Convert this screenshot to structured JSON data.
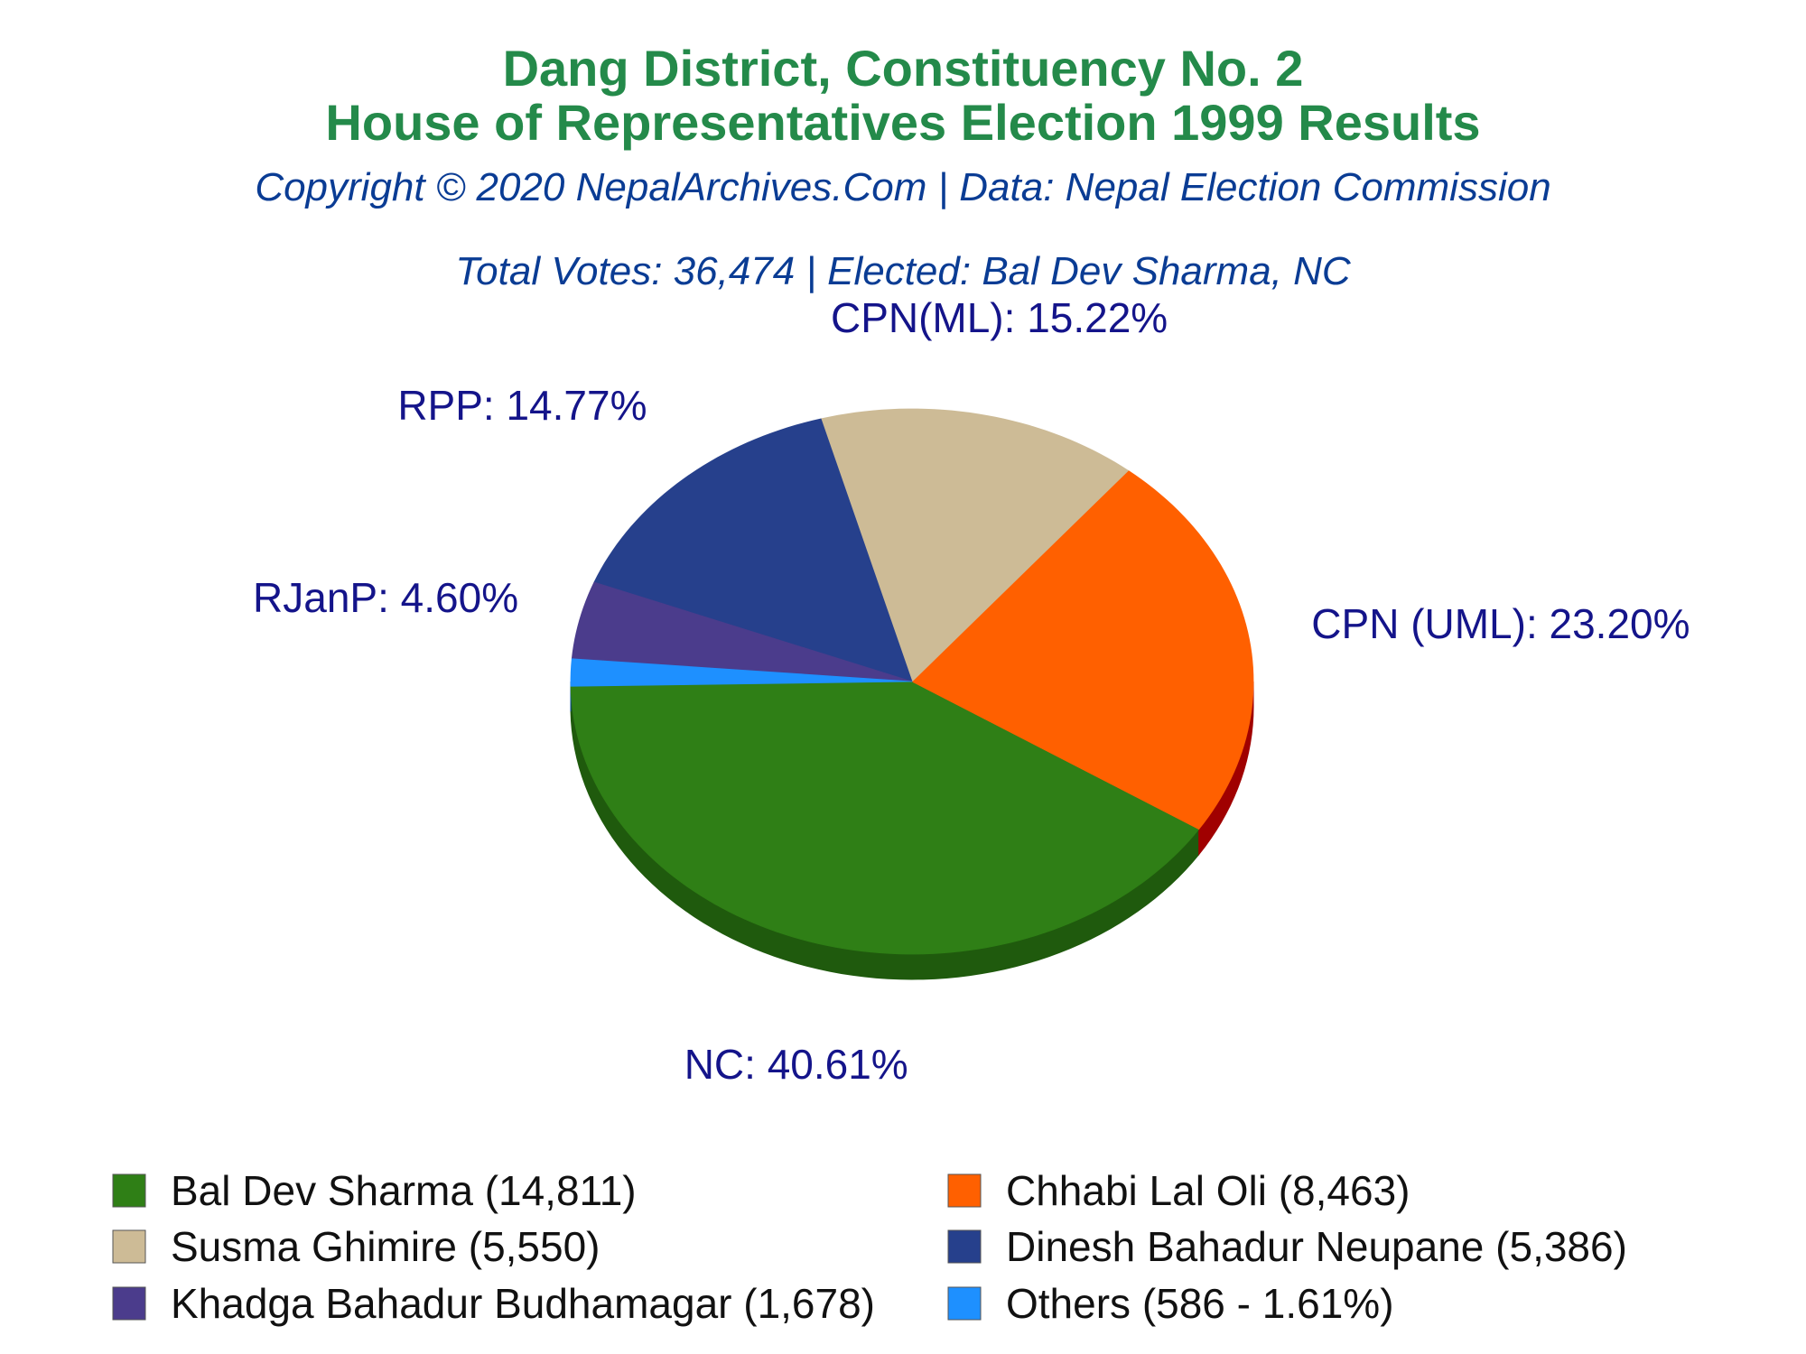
{
  "header": {
    "title_line1": "Dang District, Constituency No. 2",
    "title_line2": "House of Representatives Election 1999 Results",
    "copyright": "Copyright © 2020 NepalArchives.Com | Data: Nepal Election Commission",
    "summary": "Total Votes: 36,474 | Elected: Bal Dev Sharma, NC"
  },
  "chart_data": {
    "type": "pie",
    "three_d": true,
    "total_votes": 36474,
    "elected": "Bal Dev Sharma, NC",
    "slices": [
      {
        "party": "NC",
        "candidate": "Bal Dev Sharma",
        "votes": 14811,
        "percent": 40.61,
        "label": "NC: 40.61%",
        "color": "#2f7f16",
        "side_color": "#1f5a0d"
      },
      {
        "party": "CPN (UML)",
        "candidate": "Chhabi Lal Oli",
        "votes": 8463,
        "percent": 23.2,
        "label": "CPN (UML): 23.20%",
        "color": "#ff6000",
        "side_color": "#a00000"
      },
      {
        "party": "CPN(ML)",
        "candidate": "Susma Ghimire",
        "votes": 5550,
        "percent": 15.22,
        "label": "CPN(ML): 15.22%",
        "color": "#cdbb96",
        "side_color": "#746340"
      },
      {
        "party": "RPP",
        "candidate": "Dinesh Bahadur Neupane",
        "votes": 5386,
        "percent": 14.77,
        "label": "RPP: 14.77%",
        "color": "#26408c",
        "side_color": "#0a0a45"
      },
      {
        "party": "RJanP",
        "candidate": "Khadga Bahadur Budhamagar",
        "votes": 1678,
        "percent": 4.6,
        "label": "RJanP: 4.60%",
        "color": "#4b3c8c",
        "side_color": "#2a1f55"
      },
      {
        "party": "Others",
        "candidate": "Others",
        "votes": 586,
        "percent": 1.61,
        "label": "",
        "color": "#1e90ff",
        "side_color": "#0b4f9a"
      }
    ]
  },
  "legend": {
    "items": [
      {
        "text": "Bal Dev Sharma (14,811)",
        "color": "#2f7f16"
      },
      {
        "text": "Chhabi Lal Oli (8,463)",
        "color": "#ff6000"
      },
      {
        "text": "Susma Ghimire (5,550)",
        "color": "#cdbb96"
      },
      {
        "text": "Dinesh Bahadur Neupane (5,386)",
        "color": "#26408c"
      },
      {
        "text": "Khadga Bahadur Budhamagar (1,678)",
        "color": "#4b3c8c"
      },
      {
        "text": "Others (586 - 1.61%)",
        "color": "#1e90ff"
      }
    ]
  }
}
